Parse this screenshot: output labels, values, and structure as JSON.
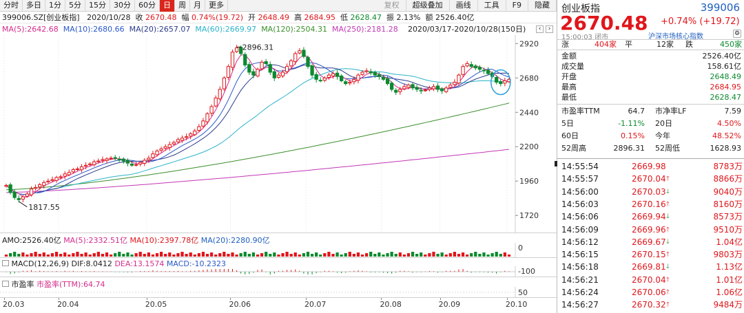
{
  "toolbar": {
    "items": [
      {
        "label": "分时"
      },
      {
        "label": "多日"
      },
      {
        "label": "1分"
      },
      {
        "label": "5分"
      },
      {
        "label": "15分"
      },
      {
        "label": "30分"
      },
      {
        "label": "60分"
      },
      {
        "label": "日",
        "active": true
      },
      {
        "label": "周"
      },
      {
        "label": "月"
      },
      {
        "label": "更多"
      }
    ],
    "right_items": [
      {
        "label": "复权",
        "dim": true
      },
      {
        "label": "超级叠加"
      },
      {
        "label": "画线"
      },
      {
        "label": "工具"
      },
      {
        "label": "F9"
      },
      {
        "label": "隐藏"
      }
    ]
  },
  "info": {
    "code_name": "399006.SZ[创业板指]",
    "date": "2020/10/28",
    "close_label": "收",
    "close": "2670.48",
    "change_pct_label": "幅",
    "change_pct": "0.74%(19.72)",
    "open_label": "开",
    "open": "2648.49",
    "high_label": "高",
    "high": "2684.95",
    "low_label": "低",
    "low": "2628.47",
    "amplitude_label": "振",
    "amplitude": "2.13%",
    "amount_label": "额",
    "amount": "2526.40亿"
  },
  "ma": {
    "ma5": "MA(5):2642.68",
    "ma10": "MA(10):2680.66",
    "ma20": "MA(20):2657.07",
    "ma60": "MA(60):2669.97",
    "ma120": "MA(120):2504.31",
    "ma250": "MA(250):2181.28",
    "range": "2020/03/17-2020/10/28(150日)"
  },
  "colors": {
    "up": "#e0161b",
    "down": "#0b8a2e",
    "ma5": "#d42c8c",
    "ma10": "#2a57c9",
    "ma20": "#2b3a8a",
    "ma60": "#2bb3c9",
    "ma120": "#3a8f2a",
    "ma250": "#c236b5"
  },
  "chart_data": {
    "type": "candlestick",
    "title": "399006.SZ[创业板指]",
    "price_axis": {
      "ticks": [
        "2920",
        "2680",
        "2440",
        "2200",
        "1960",
        "1720"
      ],
      "range": [
        1620,
        2960
      ]
    },
    "x_ticks": [
      "20.03",
      "20.04",
      "20.05",
      "20.06",
      "20.07",
      "20.08",
      "20.09",
      "20.10"
    ],
    "annotations": [
      {
        "label": "2896.31"
      },
      {
        "label": "1817.55"
      }
    ],
    "close_series": [
      1930,
      1880,
      1845,
      1830,
      1850,
      1870,
      1905,
      1915,
      1935,
      1950,
      1960,
      1970,
      1985,
      1990,
      2010,
      2020,
      2040,
      2045,
      2060,
      2070,
      2080,
      2095,
      2100,
      2110,
      2115,
      2120,
      2118,
      2110,
      2100,
      2085,
      2070,
      2075,
      2090,
      2105,
      2120,
      2150,
      2170,
      2185,
      2200,
      2215,
      2230,
      2250,
      2260,
      2270,
      2290,
      2310,
      2340,
      2380,
      2430,
      2480,
      2540,
      2600,
      2680,
      2760,
      2860,
      2890,
      2850,
      2770,
      2720,
      2700,
      2740,
      2790,
      2780,
      2720,
      2680,
      2700,
      2720,
      2760,
      2800,
      2850,
      2870,
      2830,
      2760,
      2700,
      2670,
      2660,
      2680,
      2700,
      2710,
      2690,
      2660,
      2640,
      2650,
      2670,
      2700,
      2720,
      2730,
      2715,
      2700,
      2690,
      2670,
      2640,
      2600,
      2580,
      2600,
      2620,
      2630,
      2610,
      2600,
      2590,
      2595,
      2610,
      2620,
      2600,
      2590,
      2610,
      2630,
      2650,
      2700,
      2760,
      2780,
      2760,
      2750,
      2740,
      2730,
      2710,
      2690,
      2650,
      2640,
      2660,
      2670
    ],
    "ma250_end": 2181.28,
    "ma120_end": 2504.31,
    "volume": {
      "label": "AMO:2526.40亿",
      "ma5": "MA(5):2332.51亿",
      "ma10": "MA(10):2397.78亿",
      "ma20": "MA(20):2280.90亿",
      "axis": [
        "0"
      ]
    },
    "macd": {
      "label": "MACD(12,26,9)",
      "dif": "DIF:8.0412",
      "dea": "DEA:13.1574",
      "macd": "MACD:-10.2323",
      "axis": [
        "-100"
      ]
    },
    "pe": {
      "label": "市盈率",
      "ttm": "市盈率(TTM):64.74",
      "axis": [
        "50"
      ]
    }
  },
  "quote": {
    "name": "创业板指",
    "code": "399006",
    "price": "2670.48",
    "change": "+0.74% (+19.72)",
    "time": "15:00:03",
    "status": "闭市",
    "index_name": "沪深市场核心指数",
    "breadth": {
      "up_label": "涨",
      "up": "404家",
      "flat_label": "平",
      "flat": "12家",
      "down_label": "跌",
      "down": "450家"
    },
    "stats": [
      {
        "label": "金额",
        "value": "2526.40亿",
        "cls": ""
      },
      {
        "label": "成交量",
        "value": "158.61亿",
        "cls": ""
      },
      {
        "label": "开盘",
        "value": "2648.49",
        "cls": "green"
      },
      {
        "label": "最高",
        "value": "2684.95",
        "cls": "red"
      },
      {
        "label": "最低",
        "value": "2628.47",
        "cls": "green"
      }
    ],
    "valuation": [
      {
        "l1": "市盈率TTM",
        "v1": "64.7",
        "c1": "",
        "l2": "市净率LF",
        "v2": "7.59",
        "c2": ""
      },
      {
        "l1": "5日",
        "v1": "-1.11%",
        "c1": "green",
        "l2": "20日",
        "v2": "4.50%",
        "c2": "red"
      },
      {
        "l1": "60日",
        "v1": "0.15%",
        "c1": "red",
        "l2": "今年",
        "v2": "48.52%",
        "c2": "red"
      },
      {
        "l1": "52周高",
        "v1": "2896.31",
        "c1": "",
        "l2": "52周低",
        "v2": "1628.93",
        "c2": ""
      }
    ],
    "ticks": [
      {
        "time": "14:55:54",
        "price": "2669.98",
        "dir": "",
        "vol": "8783万"
      },
      {
        "time": "14:55:57",
        "price": "2670.04",
        "dir": "up",
        "vol": "8866万"
      },
      {
        "time": "14:56:00",
        "price": "2670.03",
        "dir": "down",
        "vol": "9040万"
      },
      {
        "time": "14:56:03",
        "price": "2670.16",
        "dir": "up",
        "vol": "8160万"
      },
      {
        "time": "14:56:06",
        "price": "2669.94",
        "dir": "down",
        "vol": "8573万"
      },
      {
        "time": "14:56:09",
        "price": "2669.96",
        "dir": "up",
        "vol": "9510万"
      },
      {
        "time": "14:56:12",
        "price": "2669.67",
        "dir": "down",
        "vol": "1.04亿"
      },
      {
        "time": "14:56:15",
        "price": "2670.15",
        "dir": "up",
        "vol": "9803万"
      },
      {
        "time": "14:56:18",
        "price": "2669.81",
        "dir": "down",
        "vol": "1.13亿"
      },
      {
        "time": "14:56:21",
        "price": "2670.04",
        "dir": "up",
        "vol": "1.01亿"
      },
      {
        "time": "14:56:24",
        "price": "2670.06",
        "dir": "up",
        "vol": "1.06亿"
      },
      {
        "time": "14:56:27",
        "price": "2670.32",
        "dir": "up",
        "vol": "9484万"
      }
    ]
  }
}
